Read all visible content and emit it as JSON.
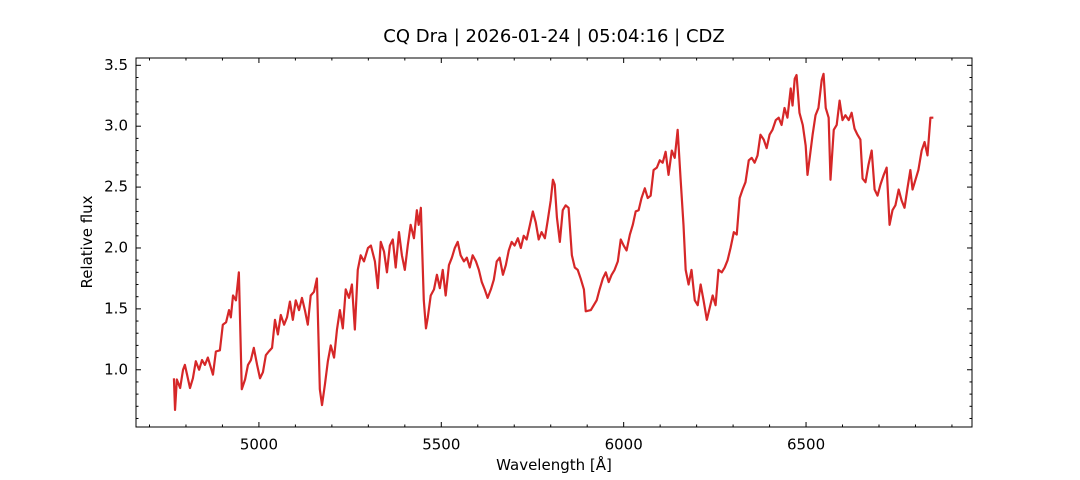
{
  "chart_data": {
    "type": "line",
    "title": "CQ Dra | 2026-01-24 | 05:04:16 | CDZ",
    "x_label": "Wavelength [Å]",
    "y_label": "Relative flux",
    "color": "#d62728",
    "xlim": [
      4663,
      6955
    ],
    "ylim": [
      0.53,
      3.56
    ],
    "xticks": [
      5000,
      5500,
      6000,
      6500
    ],
    "yticks": [
      {
        "value": 1,
        "label": "1.0"
      },
      1.5,
      {
        "value": 2,
        "label": "2.0"
      },
      2.5,
      {
        "value": 3,
        "label": "3.0"
      },
      3.5
    ],
    "xminorticks": [
      4700,
      4800,
      4900,
      5100,
      5200,
      5300,
      5400,
      5600,
      5700,
      5800,
      5900,
      6100,
      6200,
      6300,
      6400,
      6600,
      6700,
      6800,
      6900
    ],
    "yminorticks": [
      0.6,
      0.7,
      0.8,
      0.9,
      1.1,
      1.2,
      1.3,
      1.4,
      1.6,
      1.7,
      1.8,
      1.9,
      2.1,
      2.2,
      2.3,
      2.4,
      2.6,
      2.7,
      2.8,
      2.9,
      3.1,
      3.2,
      3.3,
      3.4
    ],
    "x": [
      4767,
      4770,
      4775,
      4784,
      4792,
      4797,
      4803,
      4811,
      4819,
      4827,
      4836,
      4844,
      4852,
      4860,
      4868,
      4874,
      4882,
      4893,
      4901,
      4910,
      4918,
      4923,
      4929,
      4937,
      4945,
      4953,
      4962,
      4970,
      4978,
      4986,
      4995,
      5003,
      5011,
      5019,
      5027,
      5036,
      5044,
      5052,
      5060,
      5069,
      5077,
      5085,
      5093,
      5101,
      5110,
      5118,
      5126,
      5134,
      5142,
      5151,
      5159,
      5167,
      5173,
      5181,
      5189,
      5197,
      5206,
      5214,
      5222,
      5230,
      5238,
      5247,
      5255,
      5263,
      5271,
      5279,
      5288,
      5299,
      5307,
      5318,
      5326,
      5334,
      5343,
      5351,
      5359,
      5367,
      5375,
      5384,
      5392,
      5400,
      5408,
      5416,
      5425,
      5433,
      5438,
      5444,
      5452,
      5458,
      5463,
      5471,
      5480,
      5488,
      5496,
      5504,
      5512,
      5521,
      5529,
      5537,
      5545,
      5553,
      5562,
      5570,
      5578,
      5586,
      5595,
      5603,
      5611,
      5619,
      5627,
      5636,
      5644,
      5652,
      5660,
      5669,
      5677,
      5685,
      5693,
      5701,
      5710,
      5718,
      5726,
      5734,
      5743,
      5751,
      5759,
      5767,
      5775,
      5784,
      5792,
      5800,
      5806,
      5811,
      5817,
      5825,
      5833,
      5841,
      5849,
      5858,
      5866,
      5874,
      5882,
      5891,
      5896,
      5910,
      5918,
      5926,
      5934,
      5943,
      5951,
      5959,
      5967,
      5975,
      5984,
      5992,
      6000,
      6008,
      6017,
      6025,
      6033,
      6041,
      6049,
      6058,
      6066,
      6074,
      6082,
      6091,
      6099,
      6107,
      6115,
      6123,
      6132,
      6140,
      6148,
      6156,
      6164,
      6170,
      6178,
      6186,
      6195,
      6203,
      6211,
      6219,
      6228,
      6236,
      6244,
      6252,
      6260,
      6269,
      6277,
      6285,
      6293,
      6302,
      6310,
      6318,
      6326,
      6334,
      6343,
      6351,
      6359,
      6367,
      6375,
      6384,
      6392,
      6400,
      6408,
      6417,
      6425,
      6433,
      6441,
      6449,
      6458,
      6463,
      6469,
      6474,
      6482,
      6491,
      6499,
      6504,
      6510,
      6518,
      6526,
      6534,
      6543,
      6548,
      6554,
      6562,
      6567,
      6576,
      6584,
      6592,
      6600,
      6608,
      6617,
      6625,
      6633,
      6641,
      6649,
      6655,
      6663,
      6671,
      6680,
      6688,
      6696,
      6704,
      6713,
      6721,
      6729,
      6737,
      6745,
      6754,
      6762,
      6770,
      6778,
      6786,
      6792,
      6800,
      6808,
      6817,
      6825,
      6833,
      6841,
      6849
    ],
    "values": [
      0.93,
      0.67,
      0.92,
      0.85,
      1.0,
      1.04,
      0.96,
      0.85,
      0.93,
      1.07,
      1.0,
      1.08,
      1.04,
      1.1,
      1.02,
      0.96,
      1.15,
      1.16,
      1.37,
      1.39,
      1.49,
      1.43,
      1.61,
      1.57,
      1.8,
      0.84,
      0.92,
      1.04,
      1.08,
      1.18,
      1.04,
      0.93,
      0.98,
      1.12,
      1.15,
      1.18,
      1.41,
      1.29,
      1.45,
      1.37,
      1.43,
      1.56,
      1.41,
      1.57,
      1.49,
      1.59,
      1.49,
      1.37,
      1.61,
      1.64,
      1.75,
      0.84,
      0.71,
      0.88,
      1.07,
      1.2,
      1.1,
      1.33,
      1.49,
      1.34,
      1.66,
      1.59,
      1.7,
      1.33,
      1.82,
      1.94,
      1.89,
      2.0,
      2.02,
      1.89,
      1.67,
      2.05,
      1.97,
      1.8,
      2.02,
      2.07,
      1.84,
      2.13,
      1.94,
      1.82,
      2.02,
      2.19,
      2.08,
      2.31,
      2.19,
      2.33,
      1.57,
      1.34,
      1.43,
      1.61,
      1.66,
      1.78,
      1.67,
      1.82,
      1.61,
      1.86,
      1.92,
      2.0,
      2.05,
      1.94,
      1.89,
      1.92,
      1.84,
      1.94,
      1.89,
      1.82,
      1.72,
      1.66,
      1.59,
      1.66,
      1.74,
      1.89,
      1.92,
      1.78,
      1.86,
      1.98,
      2.05,
      2.02,
      2.08,
      2.0,
      2.1,
      2.07,
      2.19,
      2.3,
      2.21,
      2.07,
      2.13,
      2.08,
      2.23,
      2.39,
      2.56,
      2.52,
      2.25,
      2.05,
      2.31,
      2.35,
      2.33,
      1.94,
      1.84,
      1.82,
      1.75,
      1.66,
      1.48,
      1.49,
      1.53,
      1.57,
      1.66,
      1.75,
      1.8,
      1.72,
      1.78,
      1.82,
      1.89,
      2.07,
      2.02,
      1.98,
      2.11,
      2.19,
      2.3,
      2.31,
      2.41,
      2.49,
      2.41,
      2.43,
      2.64,
      2.66,
      2.72,
      2.7,
      2.79,
      2.6,
      2.8,
      2.74,
      2.97,
      2.57,
      2.19,
      1.82,
      1.7,
      1.82,
      1.57,
      1.53,
      1.7,
      1.57,
      1.41,
      1.51,
      1.61,
      1.53,
      1.82,
      1.8,
      1.84,
      1.9,
      2.0,
      2.13,
      2.11,
      2.41,
      2.48,
      2.54,
      2.72,
      2.74,
      2.7,
      2.76,
      2.93,
      2.89,
      2.82,
      2.93,
      2.97,
      3.05,
      3.07,
      3.01,
      3.15,
      3.07,
      3.31,
      3.17,
      3.39,
      3.42,
      3.11,
      3.01,
      2.84,
      2.6,
      2.74,
      2.93,
      3.09,
      3.15,
      3.38,
      3.43,
      3.15,
      3.07,
      2.56,
      2.97,
      3.01,
      3.21,
      3.05,
      3.09,
      3.05,
      3.11,
      2.98,
      2.93,
      2.89,
      2.57,
      2.54,
      2.68,
      2.8,
      2.48,
      2.43,
      2.52,
      2.6,
      2.66,
      2.19,
      2.31,
      2.35,
      2.48,
      2.39,
      2.33,
      2.49,
      2.64,
      2.48,
      2.56,
      2.64,
      2.8,
      2.87,
      2.76,
      3.07,
      3.07
    ]
  }
}
